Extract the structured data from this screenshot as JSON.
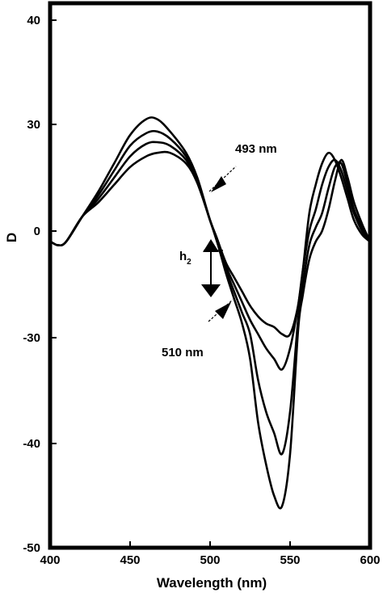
{
  "chart_data": {
    "type": "line",
    "xlabel": "Wavelength (nm)",
    "ylabel": "D",
    "xlim": [
      400,
      600
    ],
    "ylim": [
      -50,
      42
    ],
    "x_ticks": [
      "400",
      "450",
      "500",
      "550",
      "600"
    ],
    "y_ticks": [
      "40",
      "30",
      "0",
      "-30",
      "-40",
      "-50"
    ],
    "grid": false,
    "series": [
      {
        "x": [
          396,
          400,
          405,
          410,
          420,
          430,
          440,
          450,
          460,
          467,
          475,
          485,
          492,
          500,
          505,
          510,
          515,
          520,
          525,
          530,
          535,
          540,
          545,
          550,
          555,
          558,
          562,
          566,
          570,
          574,
          578,
          582,
          586,
          590,
          595,
          600
        ],
        "y": [
          -4,
          -3,
          -4,
          -3,
          4,
          11,
          19,
          27,
          30.5,
          30.5,
          28,
          22,
          15,
          3,
          -3,
          -9,
          -13,
          -17,
          -21,
          -24,
          -26,
          -27,
          -29,
          -29,
          -21,
          -11,
          5,
          13,
          19,
          22,
          20,
          15,
          9,
          3,
          -1,
          -3
        ]
      },
      {
        "x": [
          396,
          400,
          405,
          410,
          420,
          430,
          440,
          450,
          460,
          467,
          475,
          485,
          492,
          500,
          505,
          510,
          515,
          520,
          525,
          530,
          535,
          540,
          545,
          550,
          555,
          558,
          562,
          566,
          570,
          574,
          578,
          582,
          586,
          590,
          595,
          600
        ],
        "y": [
          -4,
          -3,
          -4,
          -3,
          4,
          10,
          17,
          24,
          27.5,
          28,
          26,
          21,
          14.5,
          3,
          -3,
          -10,
          -15,
          -20,
          -25,
          -29,
          -31,
          -32,
          -33,
          -31,
          -21,
          -11,
          0,
          6,
          13,
          18,
          20,
          17,
          11,
          5,
          0,
          -3
        ]
      },
      {
        "x": [
          396,
          400,
          405,
          410,
          420,
          430,
          440,
          450,
          460,
          467,
          475,
          485,
          492,
          500,
          505,
          510,
          515,
          520,
          525,
          530,
          535,
          540,
          545,
          550,
          555,
          558,
          562,
          566,
          570,
          574,
          578,
          582,
          586,
          590,
          595,
          600
        ],
        "y": [
          -4,
          -3,
          -4,
          -3,
          4,
          9,
          15,
          21,
          24.5,
          25,
          24,
          20,
          14,
          3,
          -3,
          -11,
          -17,
          -23,
          -29,
          -34,
          -37,
          -39,
          -41,
          -37,
          -25,
          -15,
          -4,
          1,
          5,
          12,
          18,
          19,
          13,
          6,
          1,
          -3
        ]
      },
      {
        "x": [
          396,
          400,
          405,
          410,
          420,
          430,
          440,
          450,
          460,
          467,
          475,
          485,
          492,
          500,
          505,
          510,
          515,
          520,
          525,
          530,
          535,
          540,
          545,
          550,
          555,
          558,
          562,
          566,
          570,
          574,
          578,
          582,
          586,
          590,
          595,
          600
        ],
        "y": [
          -4,
          -3,
          -4,
          -3,
          4,
          8,
          13,
          18,
          21,
          22,
          22,
          19,
          13.5,
          3,
          -4,
          -12,
          -19,
          -26,
          -32,
          -38,
          -42,
          -45,
          -46,
          -41,
          -28,
          -18,
          -8,
          -3,
          0,
          6,
          14,
          20,
          15,
          8,
          2,
          -3
        ]
      }
    ],
    "annotations": [
      {
        "text": "493 nm",
        "x": 493,
        "y": 14
      },
      {
        "text": "510 nm",
        "x": 510,
        "y": -19
      },
      {
        "text": "h2",
        "x": 498,
        "y": -7
      }
    ],
    "annotation_labels": {
      "a493": "493 nm",
      "a510": "510 nm",
      "h_main": "h",
      "h_sub": "2"
    },
    "colors": {
      "line": "#000000",
      "axis": "#000000",
      "background": "#ffffff"
    }
  }
}
